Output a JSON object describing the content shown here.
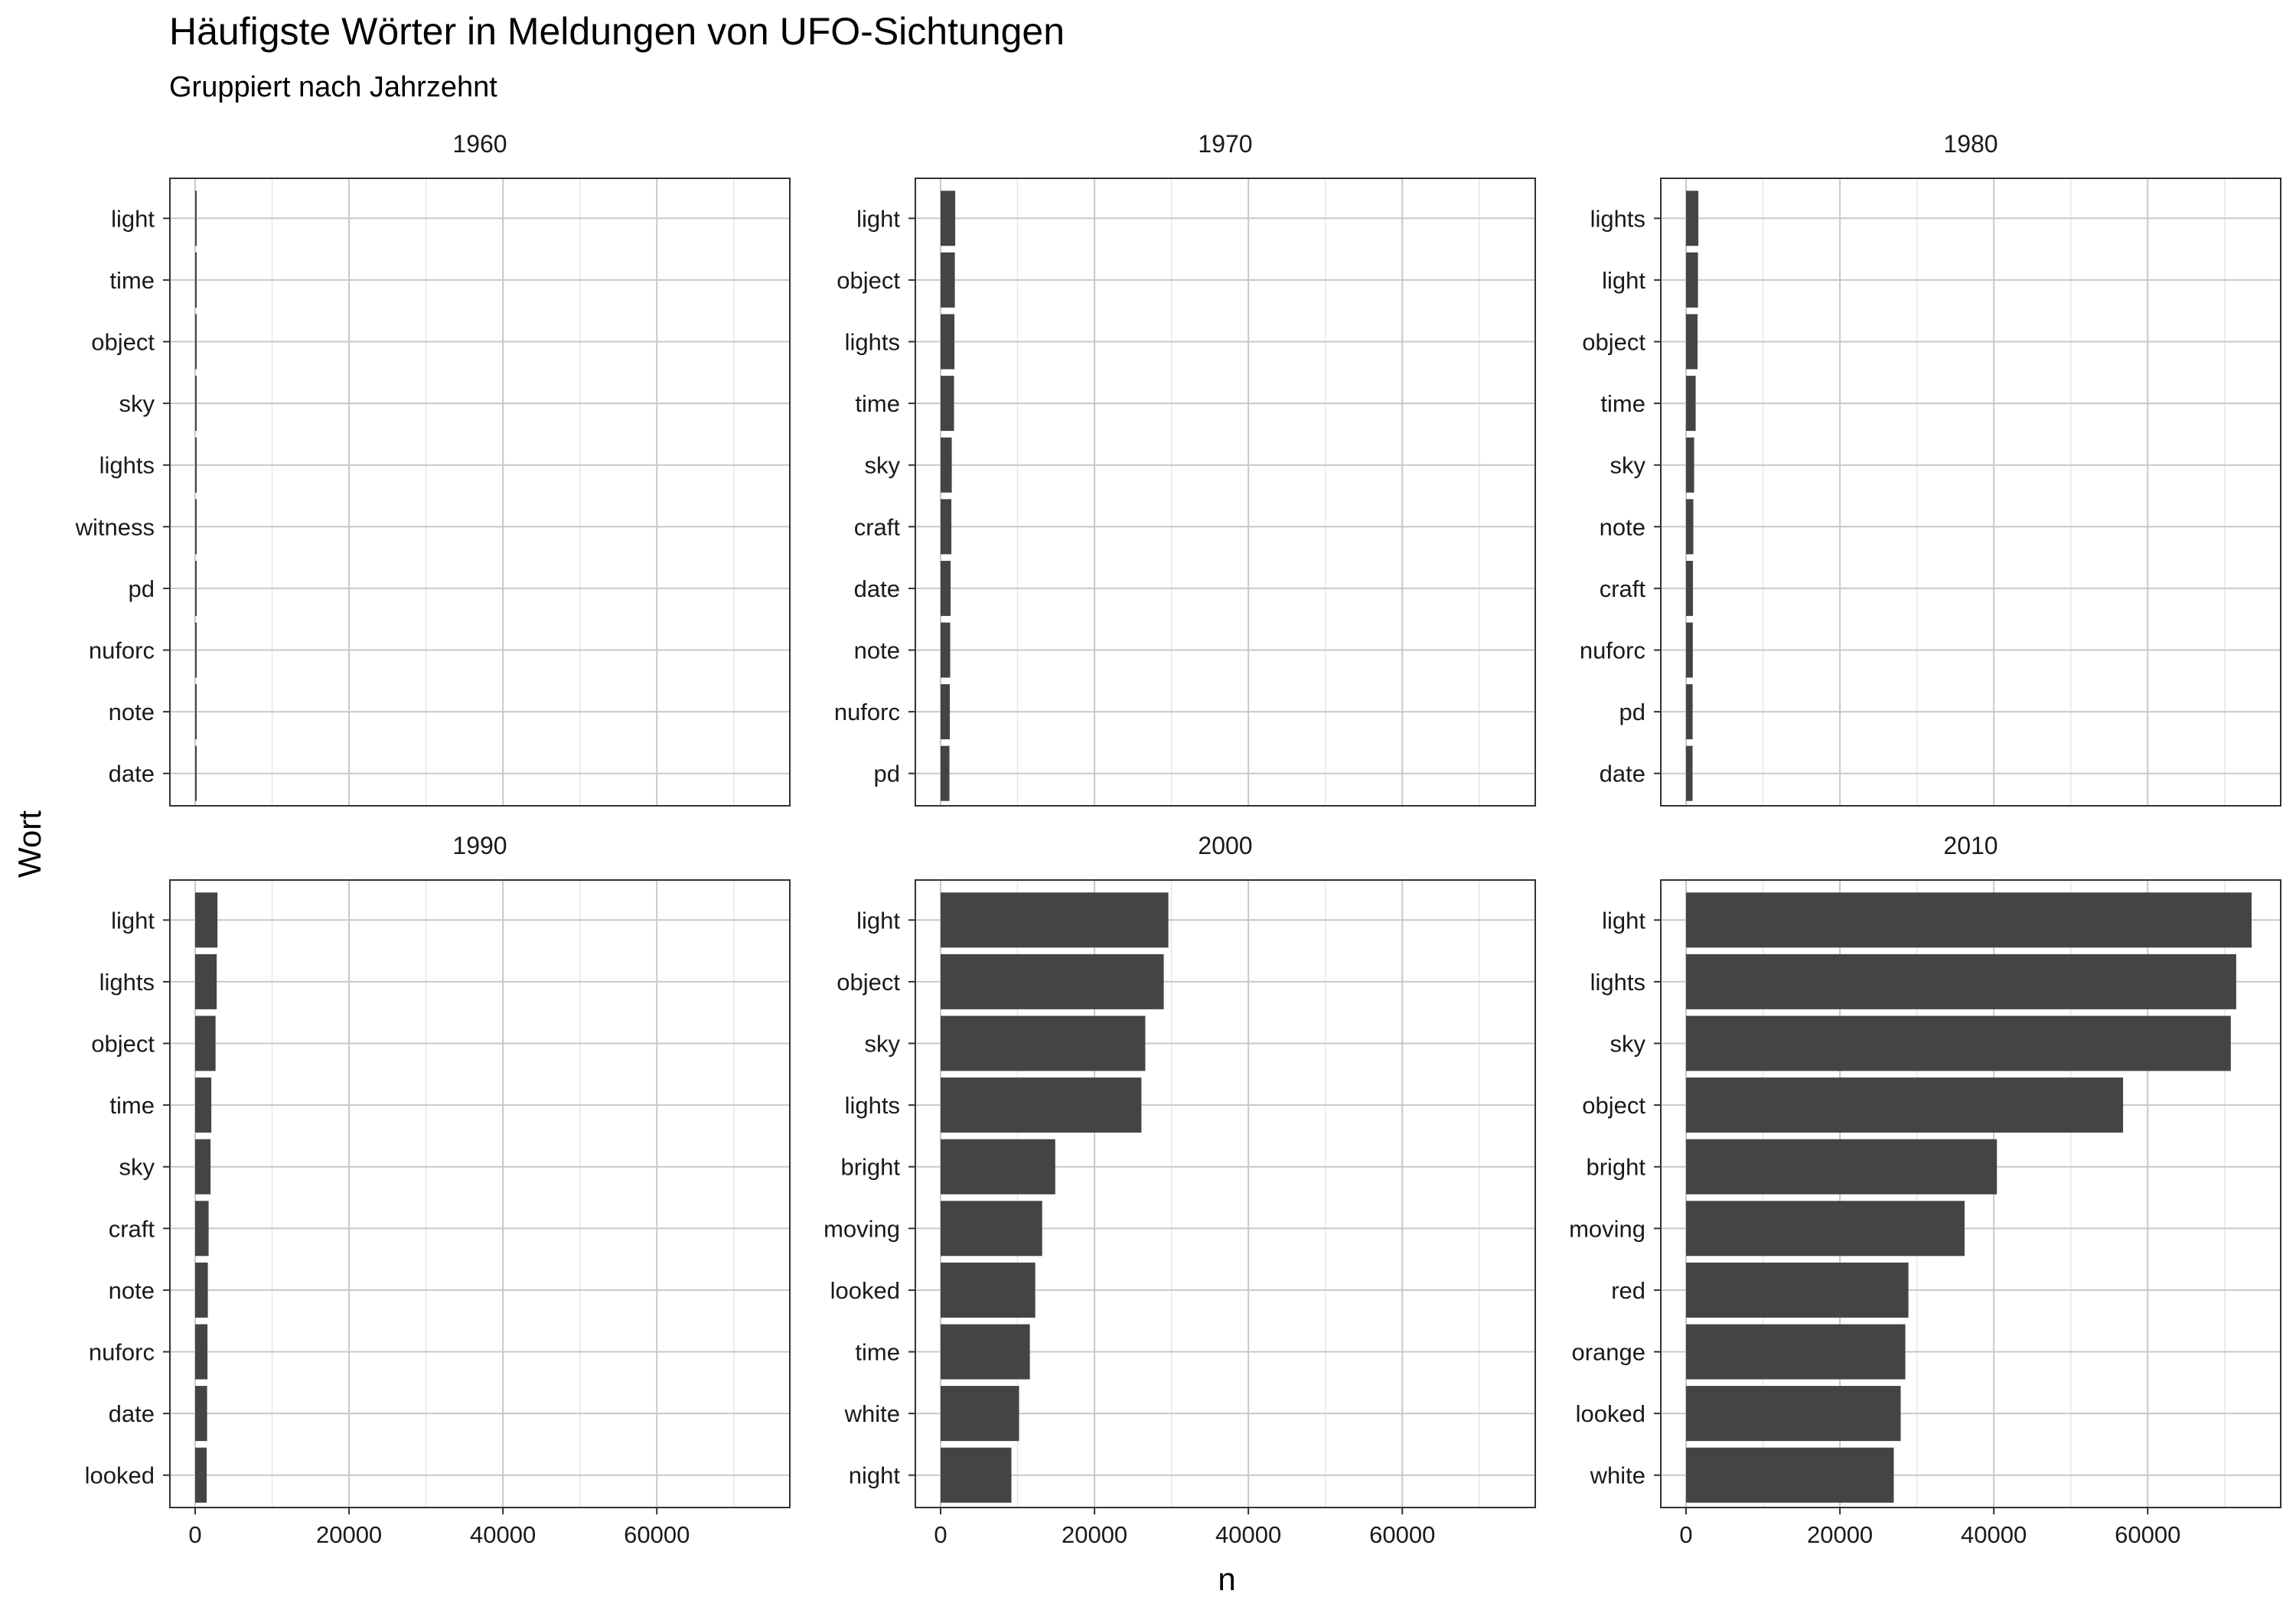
{
  "chart_data": {
    "type": "bar",
    "orientation": "horizontal",
    "title": "Häufigste Wörter in Meldungen von UFO-Sichtungen",
    "subtitle": "Gruppiert nach Jahrzehnt",
    "xlabel": "n",
    "ylabel": "Wort",
    "xlim": [
      0,
      74000
    ],
    "x_ticks": [
      0,
      20000,
      40000,
      60000
    ],
    "grid": true,
    "bar_color": "#444444",
    "panel_border_color": "#333333",
    "grid_major_color": "#c8c8c8",
    "grid_minor_color": "#e6e6e6",
    "facets": [
      {
        "label": "1960",
        "categories": [
          "light",
          "time",
          "object",
          "sky",
          "lights",
          "witness",
          "pd",
          "nuforc",
          "note",
          "date"
        ],
        "values": [
          95,
          90,
          85,
          75,
          70,
          65,
          60,
          55,
          50,
          45
        ]
      },
      {
        "label": "1970",
        "categories": [
          "light",
          "object",
          "lights",
          "time",
          "sky",
          "craft",
          "date",
          "note",
          "nuforc",
          "pd"
        ],
        "values": [
          1900,
          1850,
          1800,
          1750,
          1450,
          1400,
          1300,
          1250,
          1200,
          1150
        ]
      },
      {
        "label": "1980",
        "categories": [
          "lights",
          "light",
          "object",
          "time",
          "sky",
          "note",
          "craft",
          "nuforc",
          "pd",
          "date"
        ],
        "values": [
          1600,
          1550,
          1500,
          1250,
          1050,
          950,
          900,
          880,
          860,
          850
        ]
      },
      {
        "label": "1990",
        "categories": [
          "light",
          "lights",
          "object",
          "time",
          "sky",
          "craft",
          "note",
          "nuforc",
          "date",
          "looked"
        ],
        "values": [
          2900,
          2800,
          2650,
          2100,
          2000,
          1750,
          1650,
          1600,
          1550,
          1500
        ]
      },
      {
        "label": "2000",
        "categories": [
          "light",
          "object",
          "sky",
          "lights",
          "bright",
          "moving",
          "looked",
          "time",
          "white",
          "night"
        ],
        "values": [
          29600,
          29000,
          26600,
          26100,
          14900,
          13200,
          12300,
          11600,
          10200,
          9200
        ]
      },
      {
        "label": "2010",
        "categories": [
          "light",
          "lights",
          "sky",
          "object",
          "bright",
          "moving",
          "red",
          "orange",
          "looked",
          "white"
        ],
        "values": [
          73500,
          71500,
          70800,
          56800,
          40400,
          36200,
          28900,
          28500,
          27900,
          27000
        ]
      }
    ]
  }
}
